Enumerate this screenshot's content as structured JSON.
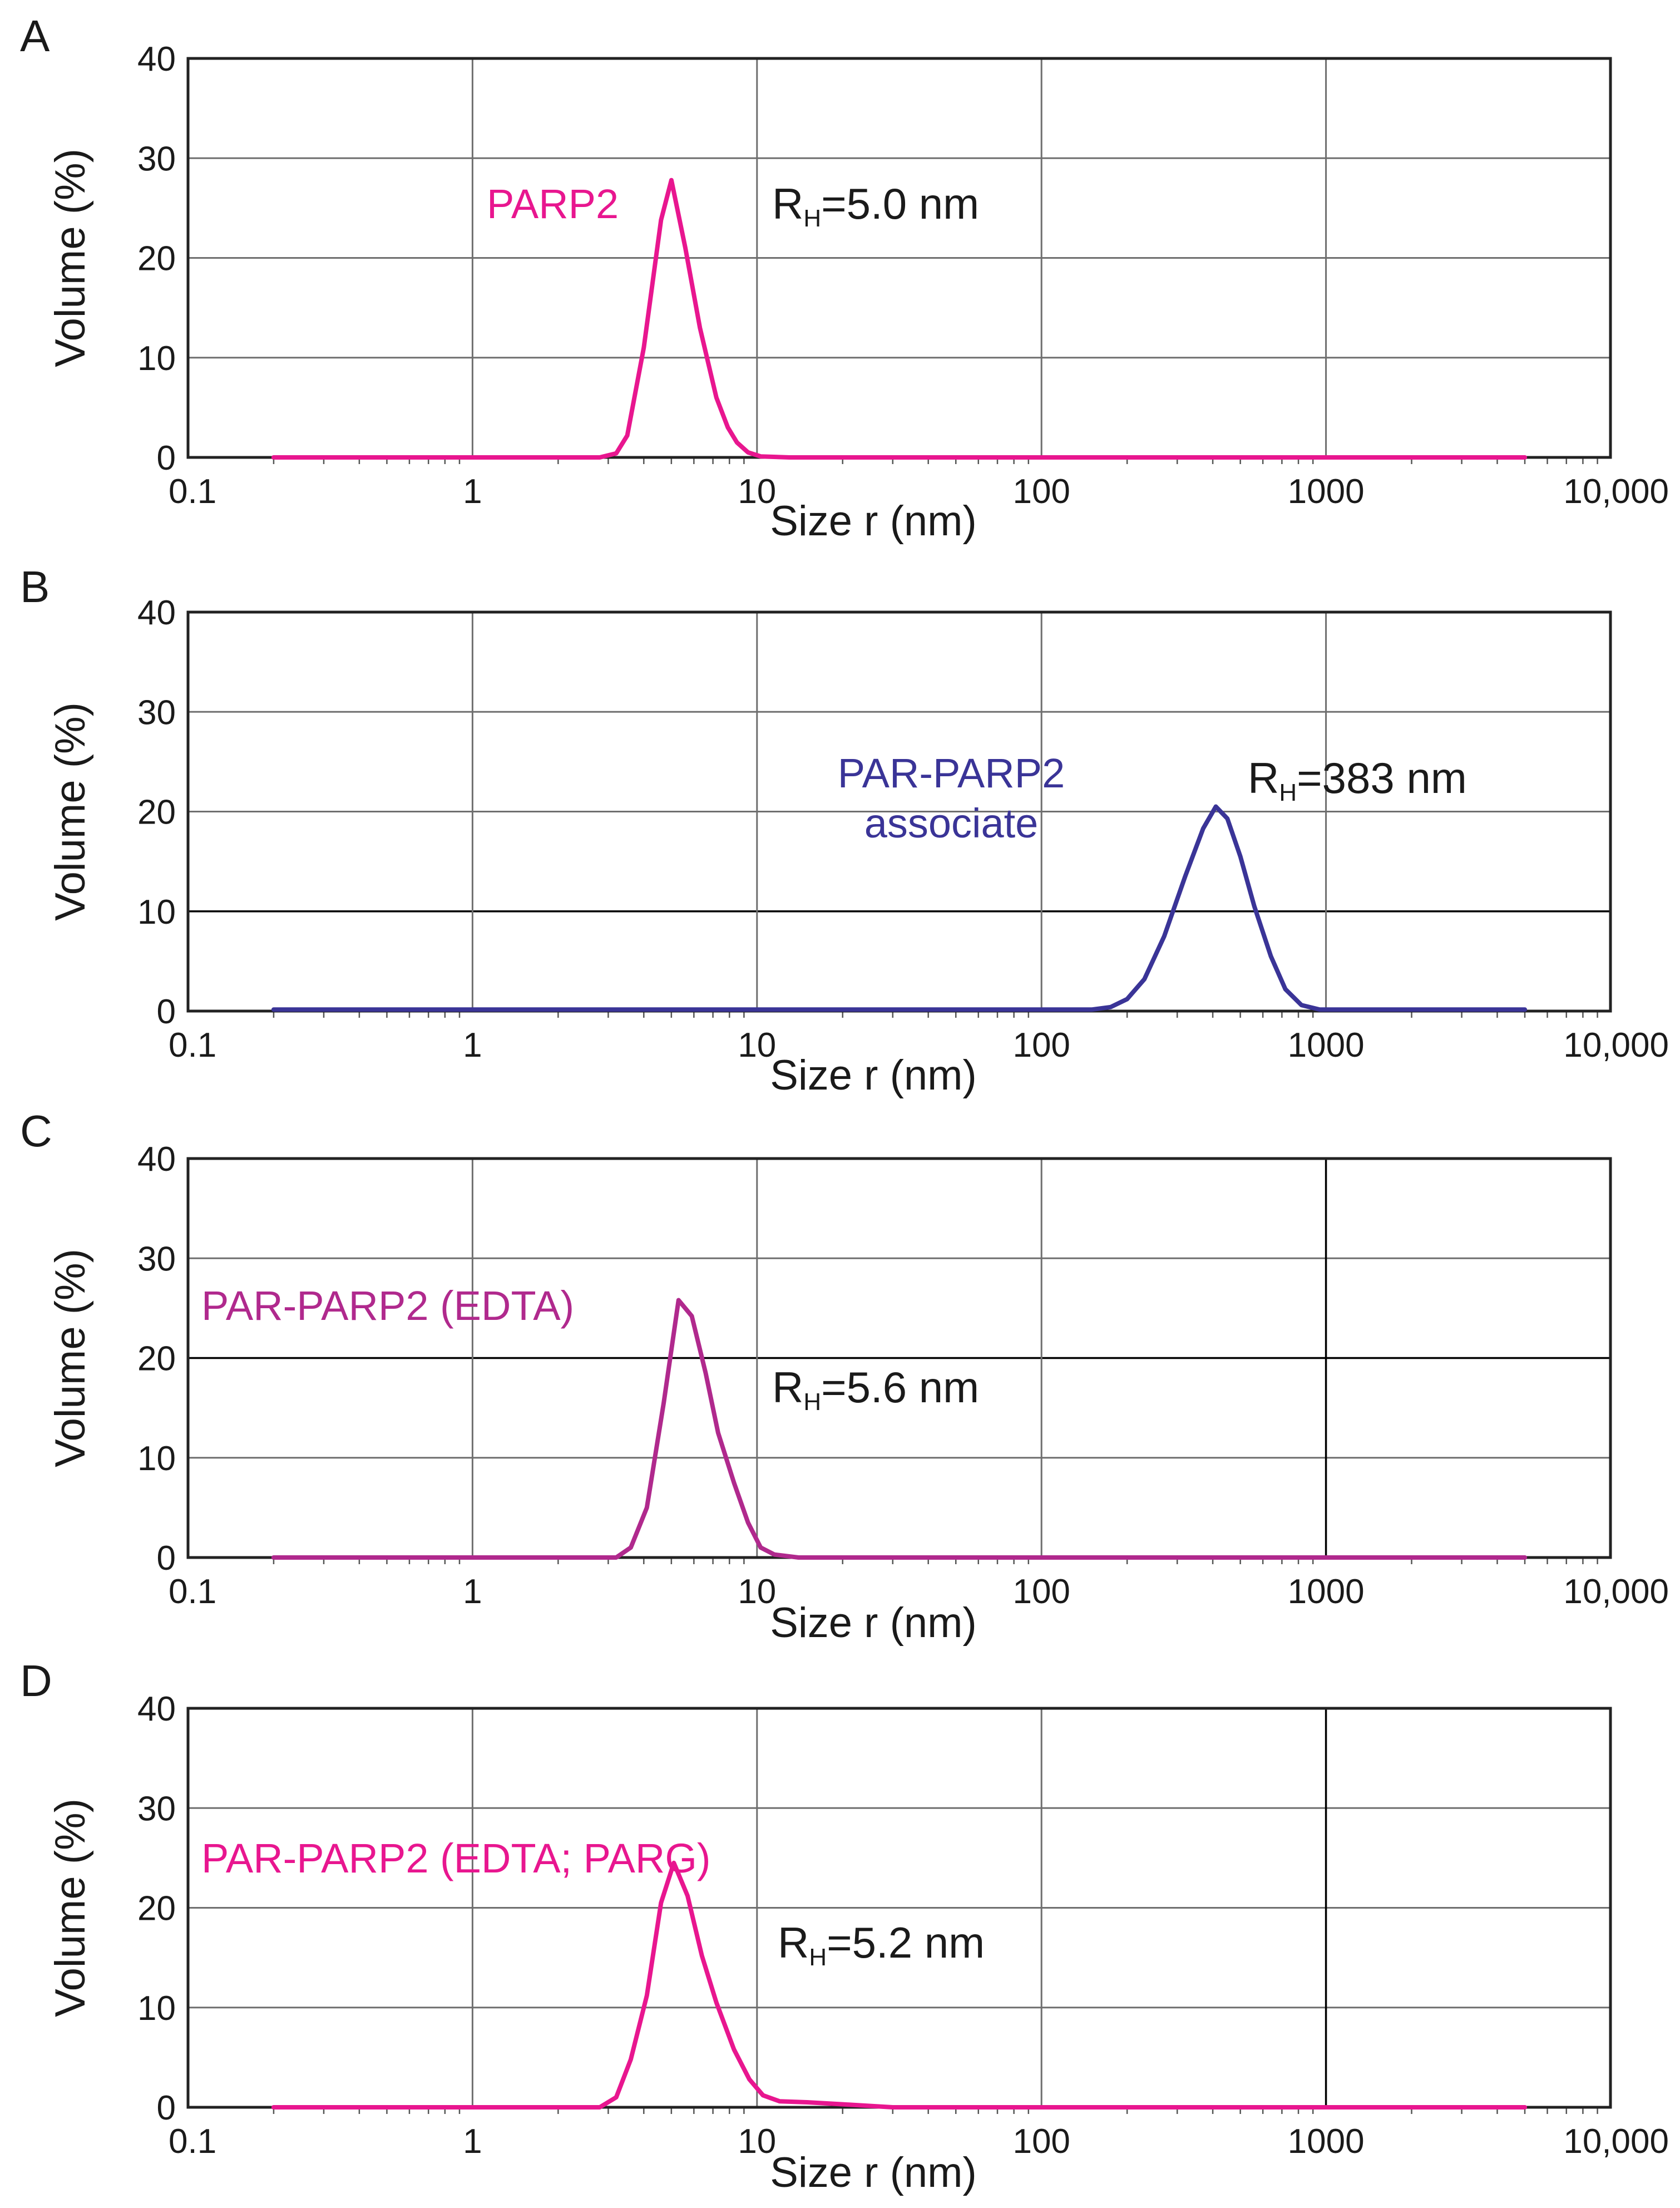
{
  "chart_data": [
    {
      "type": "line",
      "panel": "A",
      "xscale": "log",
      "xlim": [
        0.1,
        10000
      ],
      "ylim": [
        0,
        40
      ],
      "xlabel": "Size r (nm)",
      "ylabel": "Volume (%)",
      "x_ticks": [
        "0.1",
        "1",
        "10",
        "100",
        "1000",
        "10,000"
      ],
      "y_ticks": [
        "0",
        "10",
        "20",
        "30",
        "40"
      ],
      "dark_gridlines_y": [],
      "dark_gridlines_x": [],
      "color": "#e8168f",
      "series_label": [
        "PARP2"
      ],
      "annotation": {
        "main": "R",
        "sub": "H",
        "rest": "=5.0 nm"
      },
      "x": [
        0.2,
        2.8,
        3.2,
        3.5,
        4.0,
        4.6,
        5.0,
        5.6,
        6.3,
        7.2,
        7.9,
        8.5,
        9.3,
        10.3,
        13,
        25,
        5000
      ],
      "y": [
        0,
        0,
        0.4,
        2.2,
        11,
        23.8,
        27.8,
        21,
        13,
        6,
        3,
        1.5,
        0.5,
        0.1,
        0,
        0,
        0
      ]
    },
    {
      "type": "line",
      "panel": "B",
      "xscale": "log",
      "xlim": [
        0.1,
        10000
      ],
      "ylim": [
        0,
        40
      ],
      "xlabel": "Size r (nm)",
      "ylabel": "Volume (%)",
      "x_ticks": [
        "0.1",
        "1",
        "10",
        "100",
        "1000",
        "10,000"
      ],
      "y_ticks": [
        "0",
        "10",
        "20",
        "30",
        "40"
      ],
      "dark_gridlines_y": [
        10
      ],
      "dark_gridlines_x": [],
      "color": "#3a3497",
      "series_label": [
        "PAR-PARP2",
        "associate"
      ],
      "annotation": {
        "main": "R",
        "sub": "H",
        "rest": "=383 nm"
      },
      "x": [
        0.2,
        150,
        175,
        200,
        230,
        270,
        320,
        370,
        410,
        450,
        500,
        560,
        640,
        720,
        820,
        950,
        5000
      ],
      "y": [
        0.15,
        0.15,
        0.4,
        1.2,
        3.2,
        7.5,
        13.5,
        18.3,
        20.5,
        19.3,
        15.5,
        10.5,
        5.5,
        2.2,
        0.6,
        0.15,
        0.15
      ]
    },
    {
      "type": "line",
      "panel": "C",
      "xscale": "log",
      "xlim": [
        0.1,
        10000
      ],
      "ylim": [
        0,
        40
      ],
      "xlabel": "Size r (nm)",
      "ylabel": "Volume (%)",
      "x_ticks": [
        "0.1",
        "1",
        "10",
        "100",
        "1000",
        "10,000"
      ],
      "y_ticks": [
        "0",
        "10",
        "20",
        "30",
        "40"
      ],
      "dark_gridlines_y": [
        20
      ],
      "dark_gridlines_x": [
        1000
      ],
      "color": "#b0298d",
      "series_label": [
        "PAR-PARP2 (EDTA)"
      ],
      "annotation": {
        "main": "R",
        "sub": "H",
        "rest": "=5.6 nm"
      },
      "x": [
        0.2,
        3.2,
        3.6,
        4.1,
        4.7,
        5.3,
        5.9,
        6.6,
        7.3,
        8.3,
        9.3,
        10.3,
        11.5,
        14,
        30,
        5000
      ],
      "y": [
        0,
        0,
        1.0,
        5.0,
        15.5,
        25.8,
        24.2,
        18.5,
        12.5,
        7.5,
        3.5,
        1.0,
        0.3,
        0,
        0,
        0
      ]
    },
    {
      "type": "line",
      "panel": "D",
      "xscale": "log",
      "xlim": [
        0.1,
        10000
      ],
      "ylim": [
        0,
        40
      ],
      "xlabel": "Size r (nm)",
      "ylabel": "Volume (%)",
      "x_ticks": [
        "0.1",
        "1",
        "10",
        "100",
        "1000",
        "10,000"
      ],
      "y_ticks": [
        "0",
        "10",
        "20",
        "30",
        "40"
      ],
      "dark_gridlines_y": [],
      "dark_gridlines_x": [
        1000
      ],
      "color": "#e8168f",
      "series_label": [
        "PAR-PARP2 (EDTA; PARG)"
      ],
      "annotation": {
        "main": "R",
        "sub": "H",
        "rest": "=5.2 nm"
      },
      "x": [
        0.2,
        2.8,
        3.2,
        3.6,
        4.1,
        4.6,
        5.1,
        5.7,
        6.4,
        7.2,
        8.3,
        9.4,
        10.5,
        12,
        15,
        20,
        30,
        5000
      ],
      "y": [
        0,
        0,
        1.0,
        4.8,
        11.2,
        20.5,
        24.5,
        21.2,
        15.2,
        10.5,
        5.8,
        2.8,
        1.2,
        0.6,
        0.5,
        0.3,
        0,
        0
      ]
    }
  ]
}
